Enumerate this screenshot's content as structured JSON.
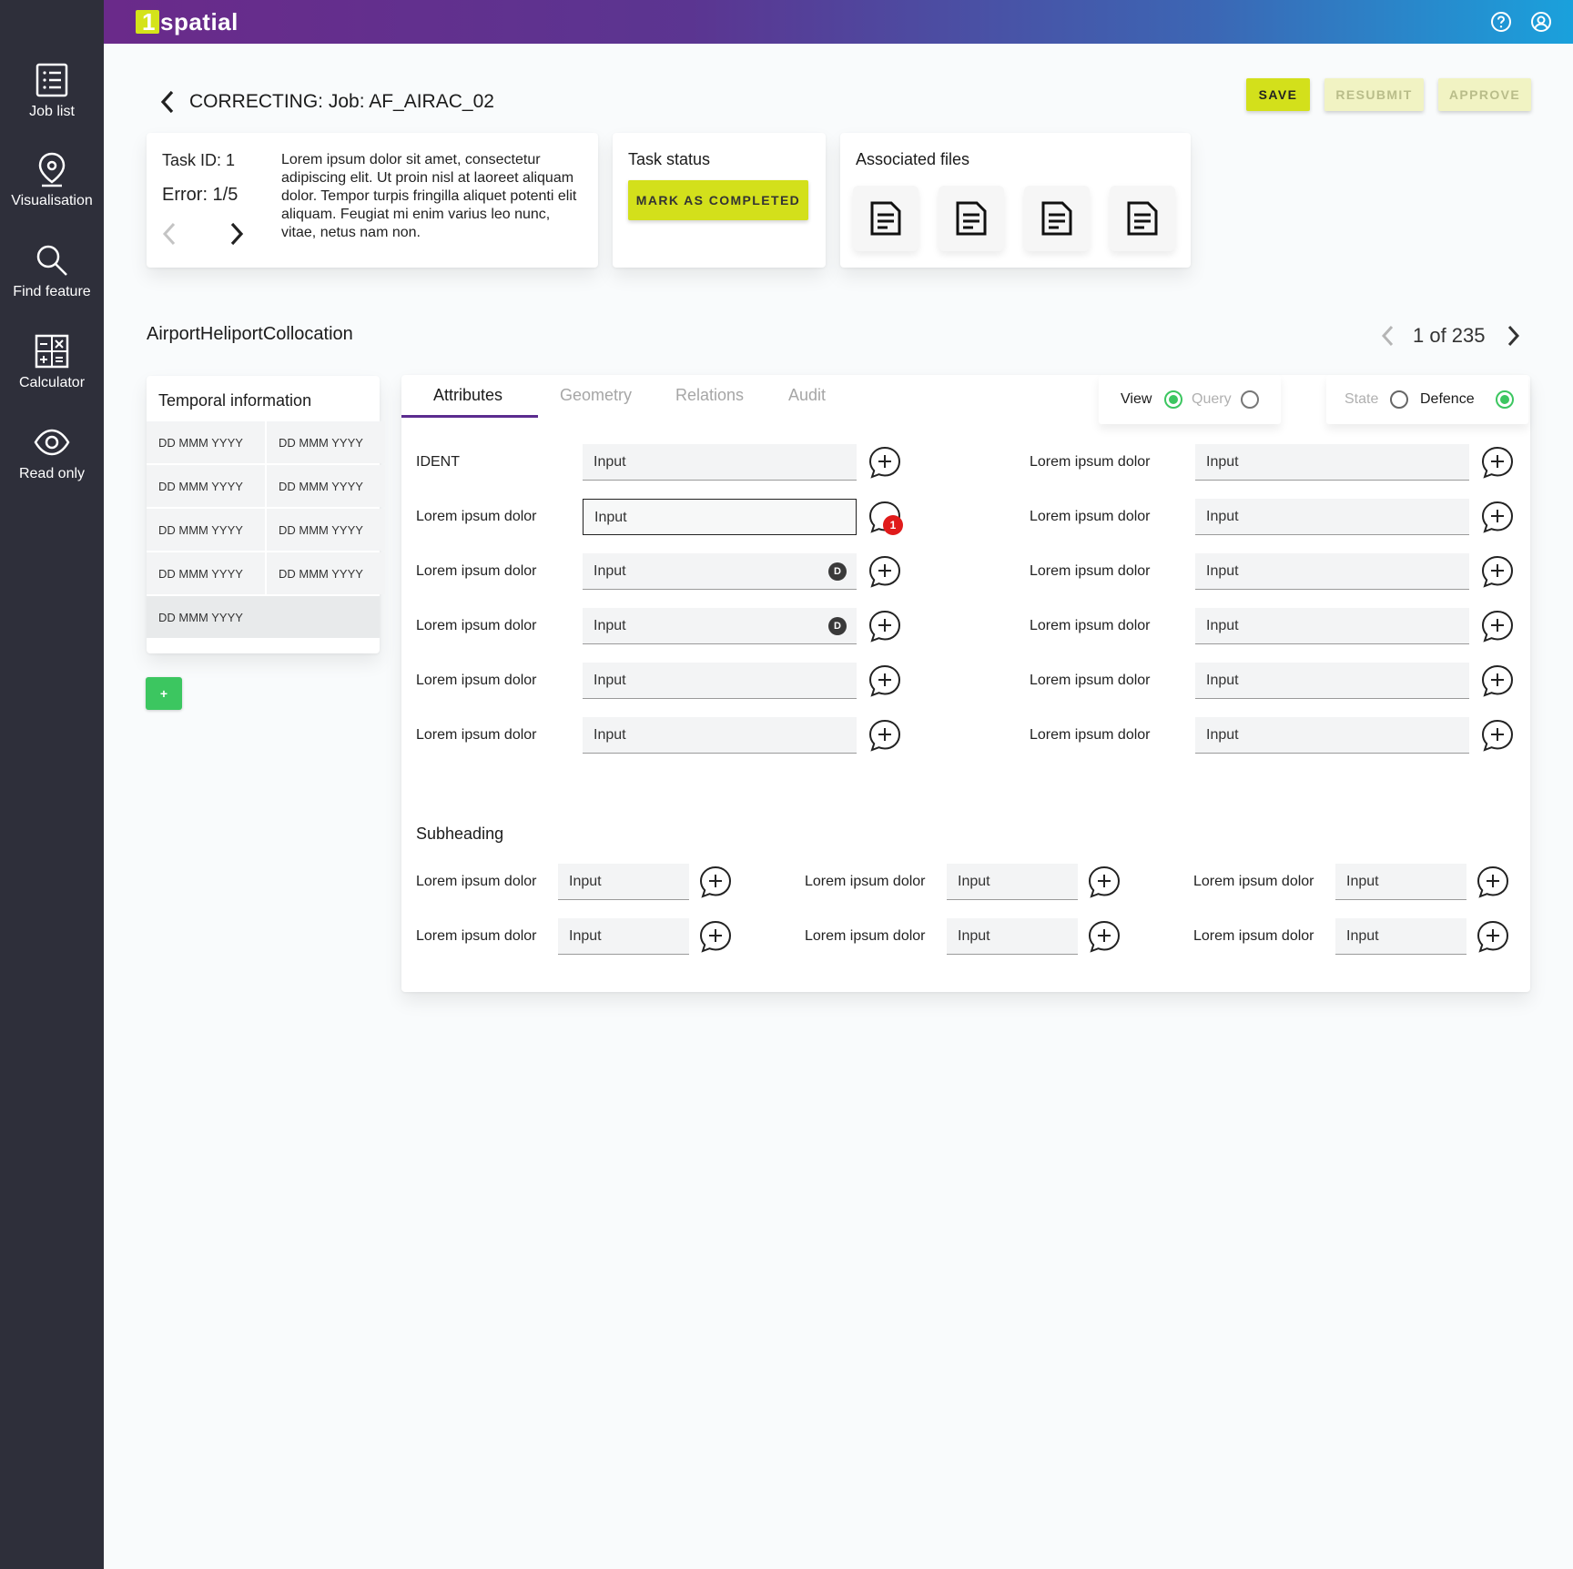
{
  "brand": {
    "logo_mark": "1",
    "logo_text": "spatial",
    "accent": "#d3e01b"
  },
  "sidebar": {
    "items": [
      {
        "label": "Job list",
        "icon": "list-icon"
      },
      {
        "label": "Visualisation",
        "icon": "map-pin-icon"
      },
      {
        "label": "Find feature",
        "icon": "search-icon"
      },
      {
        "label": "Calculator",
        "icon": "calculator-icon"
      },
      {
        "label": "Read only",
        "icon": "eye-icon"
      }
    ]
  },
  "topbar": {
    "icons": [
      "help-icon",
      "account-icon"
    ]
  },
  "header": {
    "title": "CORRECTING: Job: AF_AIRAC_02",
    "save_label": "SAVE",
    "resubmit_label": "RESUBMIT",
    "approve_label": "APPROVE"
  },
  "task": {
    "id_label": "Task ID: 1",
    "error_label": "Error: 1/5",
    "description": "Lorem ipsum dolor sit amet, consectetur adipiscing elit. Ut proin nisl at laoreet aliquam dolor. Tempor turpis fringilla aliquet potenti elit aliquam. Feugiat mi enim varius leo nunc, vitae, netus nam non."
  },
  "task_status": {
    "heading": "Task status",
    "button_label": "MARK AS COMPLETED"
  },
  "associated_files": {
    "heading": "Associated files",
    "file_count": 4
  },
  "feature": {
    "name": "AirportHeliportCollocation",
    "pager": "1 of 235"
  },
  "temporal": {
    "heading": "Temporal information",
    "rows": [
      [
        "DD MMM YYYY",
        "DD MMM YYYY"
      ],
      [
        "DD MMM YYYY",
        "DD MMM YYYY"
      ],
      [
        "DD MMM YYYY",
        "DD MMM YYYY"
      ],
      [
        "DD MMM YYYY",
        "DD MMM YYYY"
      ],
      [
        "DD MMM YYYY"
      ]
    ],
    "add_label": "+"
  },
  "tabs": [
    {
      "label": "Attributes",
      "active": true
    },
    {
      "label": "Geometry",
      "active": false
    },
    {
      "label": "Relations",
      "active": false
    },
    {
      "label": "Audit",
      "active": false
    }
  ],
  "mode_toggle": {
    "view": "View",
    "query": "Query",
    "selected": "View"
  },
  "state_toggle": {
    "state": "State",
    "defence": "Defence",
    "selected": "Defence"
  },
  "attributes": {
    "left": [
      {
        "label": "IDENT",
        "value": "Input",
        "badge": ""
      },
      {
        "label": "Lorem ipsum dolor",
        "value": "Input",
        "badge": "",
        "focused": true,
        "comments": "1"
      },
      {
        "label": "Lorem ipsum dolor",
        "value": "Input",
        "badge": "D"
      },
      {
        "label": "Lorem ipsum dolor",
        "value": "Input",
        "badge": "D"
      },
      {
        "label": "Lorem ipsum dolor",
        "value": "Input",
        "badge": ""
      },
      {
        "label": "Lorem ipsum dolor",
        "value": "Input",
        "badge": ""
      }
    ],
    "right": [
      {
        "label": "Lorem ipsum dolor",
        "value": "Input"
      },
      {
        "label": "Lorem ipsum dolor",
        "value": "Input"
      },
      {
        "label": "Lorem ipsum dolor",
        "value": "Input"
      },
      {
        "label": "Lorem ipsum dolor",
        "value": "Input"
      },
      {
        "label": "Lorem ipsum dolor",
        "value": "Input"
      },
      {
        "label": "Lorem ipsum dolor",
        "value": "Input"
      }
    ]
  },
  "subsection": {
    "heading": "Subheading",
    "rows": [
      [
        {
          "label": "Lorem ipsum dolor",
          "value": "Input"
        },
        {
          "label": "Lorem ipsum dolor",
          "value": "Input"
        },
        {
          "label": "Lorem ipsum dolor",
          "value": "Input"
        }
      ],
      [
        {
          "label": "Lorem ipsum dolor",
          "value": "Input"
        },
        {
          "label": "Lorem ipsum dolor",
          "value": "Input"
        },
        {
          "label": "Lorem ipsum dolor",
          "value": "Input"
        }
      ]
    ]
  }
}
